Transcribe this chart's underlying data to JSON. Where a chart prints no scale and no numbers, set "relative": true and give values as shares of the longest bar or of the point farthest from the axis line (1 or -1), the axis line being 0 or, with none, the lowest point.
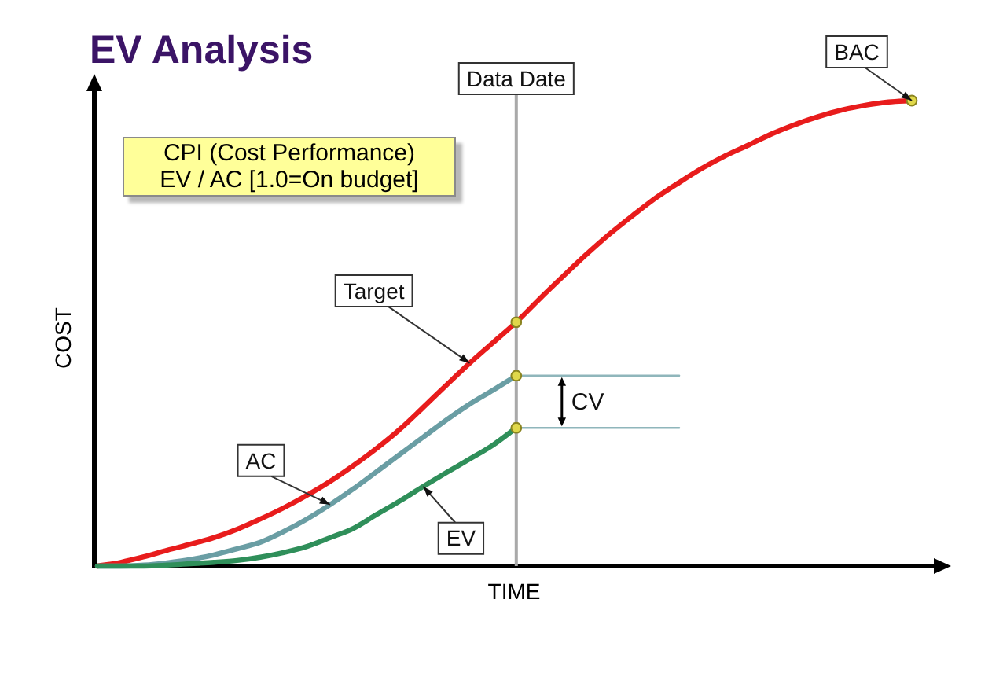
{
  "chart_data": {
    "type": "line",
    "title": "EV Analysis",
    "xlabel": "TIME",
    "ylabel": "COST",
    "relative": true,
    "categories": [
      null,
      null,
      null,
      null,
      null,
      null,
      null,
      null,
      null,
      null,
      null,
      null,
      null,
      null,
      null,
      null,
      null,
      null,
      null,
      null,
      null,
      null,
      null,
      null,
      null,
      null,
      null,
      null,
      null,
      null,
      null,
      null,
      null,
      null,
      null,
      null
    ],
    "series": [
      {
        "color": "#e81c1c",
        "values": [
          0,
          0.008,
          0.02,
          0.034,
          0.047,
          0.061,
          0.079,
          0.101,
          0.125,
          0.152,
          0.182,
          0.216,
          0.253,
          0.294,
          0.341,
          0.389,
          0.436,
          0.48,
          0.524,
          0.574,
          0.622,
          0.669,
          0.713,
          0.753,
          0.791,
          0.824,
          0.855,
          0.882,
          0.905,
          0.929,
          0.949,
          0.966,
          0.98,
          0.99,
          0.997,
          1
        ]
      },
      {
        "color": "#6a9ea4",
        "values": [
          0,
          0,
          0.002,
          0.007,
          0.014,
          0.024,
          0.037,
          0.051,
          0.074,
          0.101,
          0.132,
          0.166,
          0.203,
          0.24,
          0.277,
          0.314,
          0.348,
          0.378,
          0.409,
          null,
          null,
          null,
          null,
          null,
          null,
          null,
          null,
          null,
          null,
          null,
          null,
          null,
          null,
          null,
          null,
          null
        ]
      },
      {
        "color": "#2f8f5a",
        "values": [
          0,
          0,
          0,
          0.002,
          0.005,
          0.008,
          0.012,
          0.019,
          0.029,
          0.042,
          0.061,
          0.081,
          0.111,
          0.14,
          0.171,
          0.201,
          0.23,
          0.26,
          0.297,
          null,
          null,
          null,
          null,
          null,
          null,
          null,
          null,
          null,
          null,
          null,
          null,
          null,
          null,
          null,
          null,
          null
        ]
      },
      {
        "color": "#8fb6bb",
        "values": [
          null,
          null,
          null,
          null,
          null,
          null,
          null,
          null,
          null,
          null,
          null,
          null,
          null,
          null,
          null,
          null,
          null,
          null,
          0.409,
          0.409,
          0.409,
          0.409,
          0.409,
          0.409,
          0.409,
          0.409,
          null,
          null,
          null,
          null,
          null,
          null,
          null,
          null,
          null,
          null
        ]
      },
      {
        "color": "#8fb6bb",
        "values": [
          null,
          null,
          null,
          null,
          null,
          null,
          null,
          null,
          null,
          null,
          null,
          null,
          null,
          null,
          null,
          null,
          null,
          null,
          0.297,
          0.297,
          0.297,
          0.297,
          0.297,
          0.297,
          0.297,
          0.297,
          null,
          null,
          null,
          null,
          null,
          null,
          null,
          null,
          null,
          null
        ]
      },
      {
        "color": "#e0d84a",
        "marker": "circle",
        "values": [
          null,
          null,
          null,
          null,
          null,
          null,
          null,
          null,
          null,
          null,
          null,
          null,
          null,
          null,
          null,
          null,
          null,
          null,
          0.524,
          null,
          null,
          null,
          null,
          null,
          null,
          null,
          null,
          null,
          null,
          null,
          null,
          null,
          null,
          null,
          null,
          null
        ]
      },
      {
        "color": "#e0d84a",
        "marker": "circle",
        "values": [
          null,
          null,
          null,
          null,
          null,
          null,
          null,
          null,
          null,
          null,
          null,
          null,
          null,
          null,
          null,
          null,
          null,
          null,
          0.409,
          null,
          null,
          null,
          null,
          null,
          null,
          null,
          null,
          null,
          null,
          null,
          null,
          null,
          null,
          null,
          null,
          null
        ]
      },
      {
        "color": "#e0d84a",
        "marker": "circle",
        "values": [
          null,
          null,
          null,
          null,
          null,
          null,
          null,
          null,
          null,
          null,
          null,
          null,
          null,
          null,
          null,
          null,
          null,
          null,
          0.297,
          null,
          null,
          null,
          null,
          null,
          null,
          null,
          null,
          null,
          null,
          null,
          null,
          null,
          null,
          null,
          null,
          null
        ]
      },
      {
        "color": "#e0d84a",
        "marker": "circle",
        "values": [
          null,
          null,
          null,
          null,
          null,
          null,
          null,
          null,
          null,
          null,
          null,
          null,
          null,
          null,
          null,
          null,
          null,
          null,
          null,
          null,
          null,
          null,
          null,
          null,
          null,
          null,
          null,
          null,
          null,
          null,
          null,
          null,
          null,
          null,
          null,
          1
        ]
      }
    ],
    "annotations": [
      "CPI (Cost Performance)\nEV / AC [1.0=On budget]",
      "Data Date",
      "BAC",
      "Target",
      "CV",
      "AC",
      "EV"
    ]
  }
}
